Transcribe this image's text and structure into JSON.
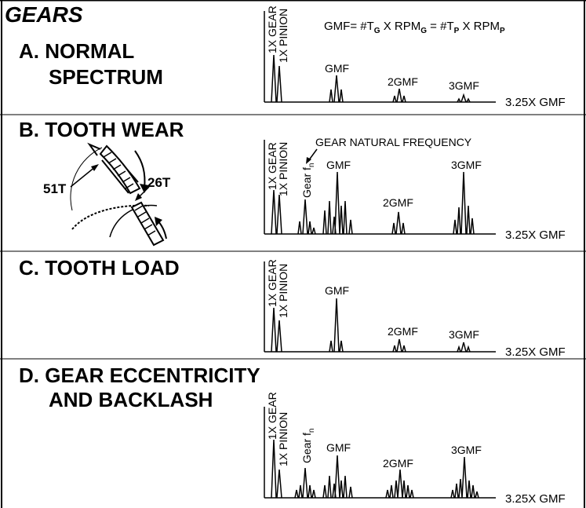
{
  "title": "GEARS",
  "sections": [
    {
      "id": "a",
      "title_lines": [
        "A. NORMAL",
        "SPECTRUM"
      ]
    },
    {
      "id": "b",
      "title_lines": [
        "B. TOOTH WEAR"
      ]
    },
    {
      "id": "c",
      "title_lines": [
        "C. TOOTH LOAD"
      ]
    },
    {
      "id": "d",
      "title_lines": [
        "D. GEAR ECCENTRICITY",
        "AND BACKLASH"
      ]
    }
  ],
  "formula": {
    "lhs": "GMF= #T",
    "sub_g": "G",
    "mid1": " X RPM",
    "sub_g2": "G",
    "mid2": " = #T",
    "sub_p": "P",
    "mid3": " X RPM",
    "sub_p2": "P"
  },
  "labels": {
    "gear_1x": "1X GEAR",
    "pinion_1x": "1X PINION",
    "gmf": "GMF",
    "gmf2": "2GMF",
    "gmf3": "3GMF",
    "xaxis": "3.25X GMF",
    "gear_natural_frequency": "GEAR NATURAL FREQUENCY",
    "gear_fn_base": "Gear f",
    "gear_fn_sub": "n",
    "teeth_51": "51T",
    "teeth_26": "26T"
  },
  "colors": {
    "ink": "#000000",
    "background": "#ffffff"
  },
  "chart_data": [
    {
      "type": "spectrum",
      "section": "A",
      "peaks": [
        {
          "label": "1X GEAR",
          "relative_amplitude": 0.85
        },
        {
          "label": "1X PINION",
          "relative_amplitude": 0.85
        },
        {
          "label": "GMF",
          "relative_amplitude": 0.6
        },
        {
          "label": "2GMF",
          "relative_amplitude": 0.3
        },
        {
          "label": "3GMF",
          "relative_amplitude": 0.15
        }
      ]
    },
    {
      "type": "spectrum",
      "section": "B",
      "peaks": [
        {
          "label": "1X GEAR",
          "relative_amplitude": 0.7
        },
        {
          "label": "1X PINION",
          "relative_amplitude": 0.7
        },
        {
          "label": "Gear fn",
          "relative_amplitude": 0.45
        },
        {
          "label": "GMF",
          "relative_amplitude": 0.8
        },
        {
          "label": "2GMF",
          "relative_amplitude": 0.25
        },
        {
          "label": "3GMF",
          "relative_amplitude": 0.8
        }
      ]
    },
    {
      "type": "spectrum",
      "section": "C",
      "peaks": [
        {
          "label": "1X GEAR",
          "relative_amplitude": 0.8
        },
        {
          "label": "1X PINION",
          "relative_amplitude": 0.8
        },
        {
          "label": "GMF",
          "relative_amplitude": 0.95
        },
        {
          "label": "2GMF",
          "relative_amplitude": 0.2
        },
        {
          "label": "3GMF",
          "relative_amplitude": 0.15
        }
      ]
    },
    {
      "type": "spectrum",
      "section": "D",
      "peaks": [
        {
          "label": "1X GEAR",
          "relative_amplitude": 0.85
        },
        {
          "label": "1X PINION",
          "relative_amplitude": 0.7
        },
        {
          "label": "Gear fn",
          "relative_amplitude": 0.35
        },
        {
          "label": "GMF",
          "relative_amplitude": 0.6
        },
        {
          "label": "2GMF",
          "relative_amplitude": 0.5
        },
        {
          "label": "3GMF",
          "relative_amplitude": 0.6
        }
      ]
    }
  ]
}
